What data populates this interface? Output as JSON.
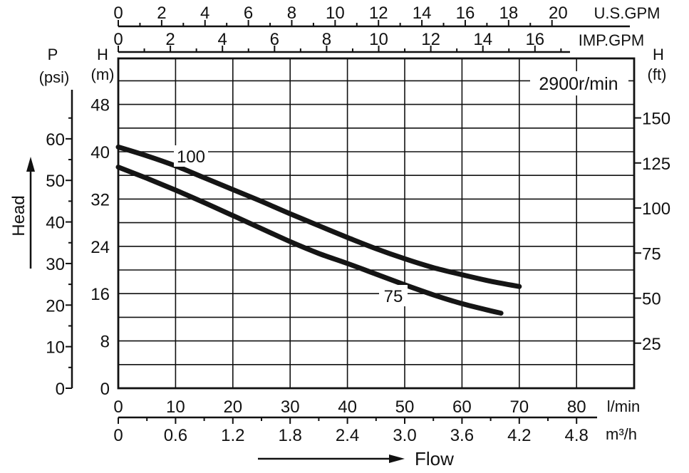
{
  "chart_data": {
    "type": "line",
    "speed_label": "2900r/min",
    "head_axis_label": "Head",
    "flow_axis_label": "Flow",
    "axes": {
      "head_m": {
        "label_top": "H",
        "label_bottom": "(m)",
        "range": [
          0,
          56
        ],
        "ticks": [
          "0",
          "8",
          "16",
          "24",
          "32",
          "40",
          "48"
        ]
      },
      "pressure_psi": {
        "label_top": "P",
        "label_bottom": "(psi)",
        "range": [
          0,
          79.6
        ],
        "ticks": [
          "0",
          "10",
          "20",
          "30",
          "40",
          "50",
          "60"
        ]
      },
      "head_ft": {
        "label_top": "H",
        "label_bottom": "(ft)",
        "range": [
          0,
          183.7
        ],
        "ticks": [
          "25",
          "50",
          "75",
          "100",
          "125",
          "150"
        ]
      },
      "flow_lmin": {
        "unit": "l/min",
        "range": [
          0,
          90
        ],
        "ticks": [
          "0",
          "10",
          "20",
          "30",
          "40",
          "50",
          "60",
          "70",
          "80"
        ]
      },
      "flow_m3h": {
        "unit": "m³/h",
        "range": [
          0,
          5.4
        ],
        "ticks": [
          "0",
          "0.6",
          "1.2",
          "1.8",
          "2.4",
          "3.0",
          "3.6",
          "4.2",
          "4.8"
        ]
      },
      "flow_usgpm": {
        "unit": "U.S.GPM",
        "range": [
          0,
          23.8
        ],
        "ticks": [
          "0",
          "2",
          "4",
          "6",
          "8",
          "10",
          "12",
          "14",
          "16",
          "18",
          "20"
        ]
      },
      "flow_impgpm": {
        "unit": "IMP.GPM",
        "range": [
          0,
          19.8
        ],
        "ticks": [
          "0",
          "2",
          "4",
          "6",
          "8",
          "10",
          "12",
          "14",
          "16"
        ]
      }
    },
    "series": [
      {
        "name": "100",
        "x_lmin": [
          0,
          5,
          10,
          15,
          20,
          25,
          30,
          35,
          40,
          45,
          50,
          55,
          60,
          65,
          70
        ],
        "y_m": [
          40.8,
          39.3,
          37.6,
          35.6,
          33.6,
          31.6,
          29.5,
          27.5,
          25.5,
          23.6,
          21.9,
          20.4,
          19.2,
          18.1,
          17.2
        ]
      },
      {
        "name": "75",
        "x_lmin": [
          0,
          5,
          10,
          15,
          20,
          25,
          30,
          35,
          40,
          45,
          50,
          55,
          60,
          65,
          66.8
        ],
        "y_m": [
          37.4,
          35.5,
          33.5,
          31.4,
          29.2,
          27.0,
          24.8,
          22.8,
          21.1,
          19.3,
          17.5,
          15.8,
          14.3,
          13.1,
          12.7
        ]
      }
    ]
  }
}
